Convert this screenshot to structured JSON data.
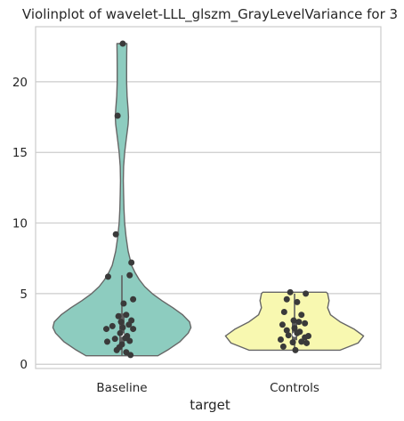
{
  "chart_data": {
    "type": "violin",
    "title": "Violinplot of wavelet-LLL_glszm_GrayLevelVariance for 3",
    "xlabel": "target",
    "ylabel": "",
    "categories": [
      "Baseline",
      "Controls"
    ],
    "colors": [
      "#8dccbf",
      "#f8f8b0"
    ],
    "ylim": [
      -0.3,
      23.9
    ],
    "yticks": [
      0,
      5,
      10,
      15,
      20
    ],
    "grid": true,
    "series": [
      {
        "category": "Baseline",
        "min": 0.6,
        "max": 22.7,
        "median": 2.1,
        "q1": 1.3,
        "q3": 3.6,
        "whisker_low": 0.6,
        "whisker_high": 6.3,
        "density": [
          [
            0.6,
            0.52
          ],
          [
            1.0,
            0.66
          ],
          [
            1.6,
            0.84
          ],
          [
            2.2,
            0.96
          ],
          [
            2.6,
            1.0
          ],
          [
            3.0,
            0.98
          ],
          [
            3.5,
            0.88
          ],
          [
            4.0,
            0.74
          ],
          [
            4.5,
            0.58
          ],
          [
            5.0,
            0.44
          ],
          [
            5.5,
            0.33
          ],
          [
            6.0,
            0.25
          ],
          [
            6.5,
            0.19
          ],
          [
            7.0,
            0.14
          ],
          [
            8.0,
            0.09
          ],
          [
            9.0,
            0.06
          ],
          [
            10.0,
            0.04
          ],
          [
            11.0,
            0.03
          ],
          [
            12.0,
            0.025
          ],
          [
            13.0,
            0.02
          ],
          [
            14.0,
            0.025
          ],
          [
            15.0,
            0.04
          ],
          [
            16.0,
            0.065
          ],
          [
            17.0,
            0.09
          ],
          [
            17.5,
            0.095
          ],
          [
            18.0,
            0.09
          ],
          [
            19.0,
            0.075
          ],
          [
            20.0,
            0.068
          ],
          [
            21.0,
            0.068
          ],
          [
            22.0,
            0.07
          ],
          [
            22.7,
            0.072
          ]
        ],
        "points": [
          [
            0.01,
            22.7
          ],
          [
            -0.05,
            17.6
          ],
          [
            -0.07,
            9.2
          ],
          [
            0.11,
            7.2
          ],
          [
            -0.16,
            6.2
          ],
          [
            0.09,
            6.3
          ],
          [
            0.13,
            4.6
          ],
          [
            0.02,
            4.3
          ],
          [
            -0.04,
            3.4
          ],
          [
            0.05,
            3.5
          ],
          [
            0.11,
            3.1
          ],
          [
            -0.01,
            3.0
          ],
          [
            0.08,
            2.8
          ],
          [
            -0.11,
            2.7
          ],
          [
            0.01,
            2.6
          ],
          [
            -0.18,
            2.5
          ],
          [
            0.13,
            2.5
          ],
          [
            -0.02,
            2.2
          ],
          [
            0.06,
            2.0
          ],
          [
            0.04,
            1.85
          ],
          [
            -0.08,
            1.8
          ],
          [
            -0.17,
            1.6
          ],
          [
            0.09,
            1.65
          ],
          [
            0.0,
            1.4
          ],
          [
            -0.03,
            1.2
          ],
          [
            -0.06,
            1.0
          ],
          [
            0.05,
            0.85
          ],
          [
            0.1,
            0.65
          ]
        ]
      },
      {
        "category": "Controls",
        "min": 1.0,
        "max": 5.1,
        "median": 2.1,
        "q1": 1.7,
        "q3": 3.1,
        "whisker_low": 1.0,
        "whisker_high": 5.0,
        "density": [
          [
            1.0,
            0.66
          ],
          [
            1.5,
            0.92
          ],
          [
            2.0,
            1.0
          ],
          [
            2.5,
            0.86
          ],
          [
            3.0,
            0.66
          ],
          [
            3.5,
            0.52
          ],
          [
            4.0,
            0.48
          ],
          [
            4.5,
            0.5
          ],
          [
            5.0,
            0.48
          ],
          [
            5.1,
            0.46
          ]
        ],
        "points": [
          [
            -0.05,
            5.1
          ],
          [
            0.13,
            5.0
          ],
          [
            -0.09,
            4.6
          ],
          [
            0.03,
            4.4
          ],
          [
            -0.12,
            3.7
          ],
          [
            0.08,
            3.5
          ],
          [
            -0.01,
            3.1
          ],
          [
            0.05,
            3.0
          ],
          [
            -0.14,
            2.8
          ],
          [
            0.12,
            2.9
          ],
          [
            0.0,
            2.55
          ],
          [
            -0.09,
            2.4
          ],
          [
            0.06,
            2.3
          ],
          [
            0.03,
            2.2
          ],
          [
            -0.07,
            2.05
          ],
          [
            0.16,
            2.0
          ],
          [
            0.12,
            1.9
          ],
          [
            -0.16,
            1.75
          ],
          [
            0.08,
            1.6
          ],
          [
            -0.02,
            1.55
          ],
          [
            0.14,
            1.5
          ],
          [
            -0.13,
            1.25
          ],
          [
            0.01,
            1.0
          ]
        ]
      }
    ]
  }
}
